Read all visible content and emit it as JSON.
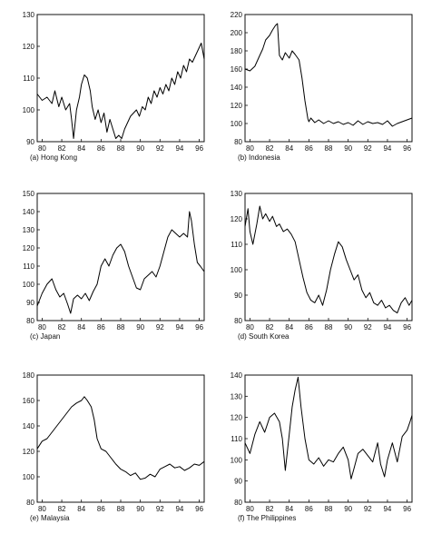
{
  "chart_data": [
    {
      "type": "line",
      "caption": "(a)  Hong Kong",
      "x_ticks": [
        "80",
        "82",
        "84",
        "86",
        "88",
        "90",
        "92",
        "94",
        "96"
      ],
      "xlim": [
        1979.5,
        1996.5
      ],
      "ylim": [
        90,
        130
      ],
      "y_ticks": [
        90,
        100,
        110,
        120,
        130
      ],
      "grid": false,
      "series": [
        {
          "x": [
            1979.5,
            1980.0,
            1980.5,
            1981.0,
            1981.3,
            1981.7,
            1982.0,
            1982.4,
            1982.8,
            1983.0,
            1983.2,
            1983.5,
            1983.8,
            1984.0,
            1984.3,
            1984.6,
            1984.9,
            1985.1,
            1985.4,
            1985.7,
            1986.0,
            1986.3,
            1986.6,
            1986.9,
            1987.2,
            1987.5,
            1987.8,
            1988.1,
            1988.4,
            1988.7,
            1989.0,
            1989.3,
            1989.6,
            1989.9,
            1990.2,
            1990.5,
            1990.8,
            1991.1,
            1991.4,
            1991.7,
            1992.0,
            1992.3,
            1992.6,
            1992.9,
            1993.2,
            1993.5,
            1993.8,
            1994.1,
            1994.4,
            1994.7,
            1995.0,
            1995.3,
            1995.6,
            1995.9,
            1996.2,
            1996.5
          ],
          "y": [
            105,
            103,
            104,
            102,
            106,
            101,
            104,
            100,
            102,
            97,
            91,
            100,
            104,
            108,
            111,
            110,
            106,
            101,
            97,
            100,
            96,
            99,
            93,
            97,
            94,
            91,
            92,
            91,
            94,
            96,
            98,
            99,
            100,
            98,
            101,
            100,
            104,
            102,
            106,
            104,
            107,
            105,
            108,
            106,
            110,
            108,
            112,
            110,
            114,
            112,
            116,
            115,
            117,
            119,
            121,
            116
          ]
        }
      ]
    },
    {
      "type": "line",
      "caption": "(b)  Indonesia",
      "x_ticks": [
        "80",
        "82",
        "84",
        "86",
        "88",
        "90",
        "92",
        "94",
        "96"
      ],
      "xlim": [
        1979.5,
        1996.5
      ],
      "ylim": [
        80,
        220
      ],
      "y_ticks": [
        80,
        100,
        120,
        140,
        160,
        180,
        200,
        220
      ],
      "grid": false,
      "series": [
        {
          "x": [
            1979.5,
            1980.0,
            1980.5,
            1981.0,
            1981.3,
            1981.6,
            1982.0,
            1982.3,
            1982.6,
            1982.8,
            1983.0,
            1983.3,
            1983.6,
            1984.0,
            1984.3,
            1984.6,
            1985.0,
            1985.3,
            1985.6,
            1985.9,
            1986.0,
            1986.2,
            1986.6,
            1987.0,
            1987.5,
            1988.0,
            1988.5,
            1989.0,
            1989.5,
            1990.0,
            1990.5,
            1991.0,
            1991.5,
            1992.0,
            1992.5,
            1993.0,
            1993.5,
            1994.0,
            1994.5,
            1995.0,
            1995.5,
            1996.0,
            1996.5
          ],
          "y": [
            160,
            158,
            163,
            175,
            182,
            192,
            197,
            203,
            208,
            210,
            175,
            170,
            178,
            172,
            180,
            176,
            170,
            150,
            125,
            105,
            102,
            106,
            101,
            104,
            100,
            103,
            100,
            102,
            99,
            101,
            98,
            103,
            99,
            102,
            100,
            101,
            99,
            103,
            97,
            100,
            102,
            104,
            106
          ]
        }
      ]
    },
    {
      "type": "line",
      "caption": "(c)  Japan",
      "x_ticks": [
        "80",
        "82",
        "84",
        "86",
        "88",
        "90",
        "92",
        "94",
        "96"
      ],
      "xlim": [
        1979.5,
        1996.5
      ],
      "ylim": [
        80,
        150
      ],
      "y_ticks": [
        80,
        90,
        100,
        110,
        120,
        130,
        140,
        150
      ],
      "grid": false,
      "series": [
        {
          "x": [
            1979.5,
            1980.0,
            1980.5,
            1981.0,
            1981.4,
            1981.8,
            1982.2,
            1982.6,
            1982.9,
            1983.2,
            1983.6,
            1984.0,
            1984.4,
            1984.8,
            1985.2,
            1985.6,
            1986.0,
            1986.4,
            1986.8,
            1987.2,
            1987.6,
            1988.0,
            1988.4,
            1988.8,
            1989.2,
            1989.6,
            1990.0,
            1990.4,
            1990.8,
            1991.2,
            1991.6,
            1992.0,
            1992.4,
            1992.8,
            1993.2,
            1993.6,
            1994.0,
            1994.4,
            1994.8,
            1995.0,
            1995.2,
            1995.5,
            1995.8,
            1996.1,
            1996.5
          ],
          "y": [
            88,
            95,
            100,
            103,
            97,
            93,
            95,
            89,
            84,
            92,
            94,
            92,
            95,
            91,
            96,
            100,
            110,
            114,
            110,
            116,
            120,
            122,
            118,
            110,
            104,
            98,
            97,
            103,
            105,
            107,
            104,
            110,
            118,
            126,
            130,
            128,
            126,
            128,
            126,
            140,
            135,
            122,
            112,
            110,
            107
          ]
        }
      ]
    },
    {
      "type": "line",
      "caption": "(d)  South  Korea",
      "x_ticks": [
        "80",
        "82",
        "84",
        "86",
        "88",
        "90",
        "92",
        "94",
        "96"
      ],
      "xlim": [
        1979.5,
        1996.5
      ],
      "ylim": [
        80,
        130
      ],
      "y_ticks": [
        80,
        90,
        100,
        110,
        120,
        130
      ],
      "grid": false,
      "series": [
        {
          "x": [
            1979.5,
            1979.8,
            1980.0,
            1980.3,
            1980.7,
            1981.0,
            1981.3,
            1981.6,
            1982.0,
            1982.3,
            1982.7,
            1983.0,
            1983.4,
            1983.8,
            1984.2,
            1984.6,
            1985.0,
            1985.4,
            1985.8,
            1986.2,
            1986.6,
            1987.0,
            1987.4,
            1987.8,
            1988.2,
            1988.6,
            1989.0,
            1989.4,
            1989.8,
            1990.2,
            1990.6,
            1991.0,
            1991.4,
            1991.8,
            1992.2,
            1992.6,
            1993.0,
            1993.4,
            1993.8,
            1994.2,
            1994.6,
            1995.0,
            1995.4,
            1995.8,
            1996.2,
            1996.5
          ],
          "y": [
            117,
            124,
            115,
            110,
            118,
            125,
            120,
            122,
            119,
            121,
            117,
            118,
            115,
            116,
            114,
            111,
            104,
            97,
            91,
            88,
            87,
            90,
            86,
            92,
            100,
            106,
            111,
            109,
            104,
            100,
            96,
            98,
            92,
            89,
            91,
            87,
            86,
            88,
            85,
            86,
            84,
            83,
            87,
            89,
            86,
            88
          ]
        }
      ]
    },
    {
      "type": "line",
      "caption": "(e)  Malaysia",
      "x_ticks": [
        "80",
        "82",
        "84",
        "86",
        "88",
        "90",
        "92",
        "94",
        "96"
      ],
      "xlim": [
        1979.5,
        1996.5
      ],
      "ylim": [
        80,
        180
      ],
      "y_ticks": [
        80,
        100,
        120,
        140,
        160,
        180
      ],
      "grid": false,
      "series": [
        {
          "x": [
            1979.5,
            1980.0,
            1980.5,
            1981.0,
            1981.5,
            1982.0,
            1982.5,
            1983.0,
            1983.5,
            1984.0,
            1984.3,
            1984.6,
            1985.0,
            1985.3,
            1985.6,
            1986.0,
            1986.5,
            1987.0,
            1987.5,
            1988.0,
            1988.5,
            1989.0,
            1989.5,
            1990.0,
            1990.5,
            1991.0,
            1991.5,
            1992.0,
            1992.5,
            1993.0,
            1993.5,
            1994.0,
            1994.5,
            1995.0,
            1995.5,
            1996.0,
            1996.5
          ],
          "y": [
            122,
            128,
            130,
            135,
            140,
            145,
            150,
            155,
            158,
            160,
            163,
            160,
            155,
            145,
            130,
            122,
            120,
            115,
            110,
            106,
            104,
            101,
            103,
            98,
            99,
            102,
            100,
            106,
            108,
            110,
            107,
            108,
            105,
            107,
            110,
            109,
            112
          ]
        }
      ]
    },
    {
      "type": "line",
      "caption": "(f)  The Philippines",
      "x_ticks": [
        "80",
        "82",
        "84",
        "86",
        "88",
        "90",
        "92",
        "94",
        "96"
      ],
      "xlim": [
        1979.5,
        1996.5
      ],
      "ylim": [
        80,
        140
      ],
      "y_ticks": [
        80,
        90,
        100,
        110,
        120,
        130,
        140
      ],
      "grid": false,
      "series": [
        {
          "x": [
            1979.5,
            1980.0,
            1980.5,
            1981.0,
            1981.5,
            1982.0,
            1982.5,
            1983.0,
            1983.3,
            1983.6,
            1984.0,
            1984.3,
            1984.6,
            1984.9,
            1985.2,
            1985.6,
            1986.0,
            1986.5,
            1987.0,
            1987.5,
            1988.0,
            1988.5,
            1989.0,
            1989.5,
            1990.0,
            1990.3,
            1990.6,
            1991.0,
            1991.5,
            1992.0,
            1992.5,
            1993.0,
            1993.3,
            1993.7,
            1994.0,
            1994.5,
            1995.0,
            1995.5,
            1996.0,
            1996.3,
            1996.5
          ],
          "y": [
            108,
            103,
            112,
            118,
            113,
            120,
            122,
            118,
            110,
            95,
            112,
            125,
            133,
            139,
            125,
            110,
            100,
            98,
            101,
            97,
            100,
            99,
            103,
            106,
            100,
            91,
            96,
            103,
            105,
            102,
            99,
            108,
            98,
            92,
            100,
            108,
            99,
            111,
            114,
            118,
            121
          ]
        }
      ]
    }
  ]
}
